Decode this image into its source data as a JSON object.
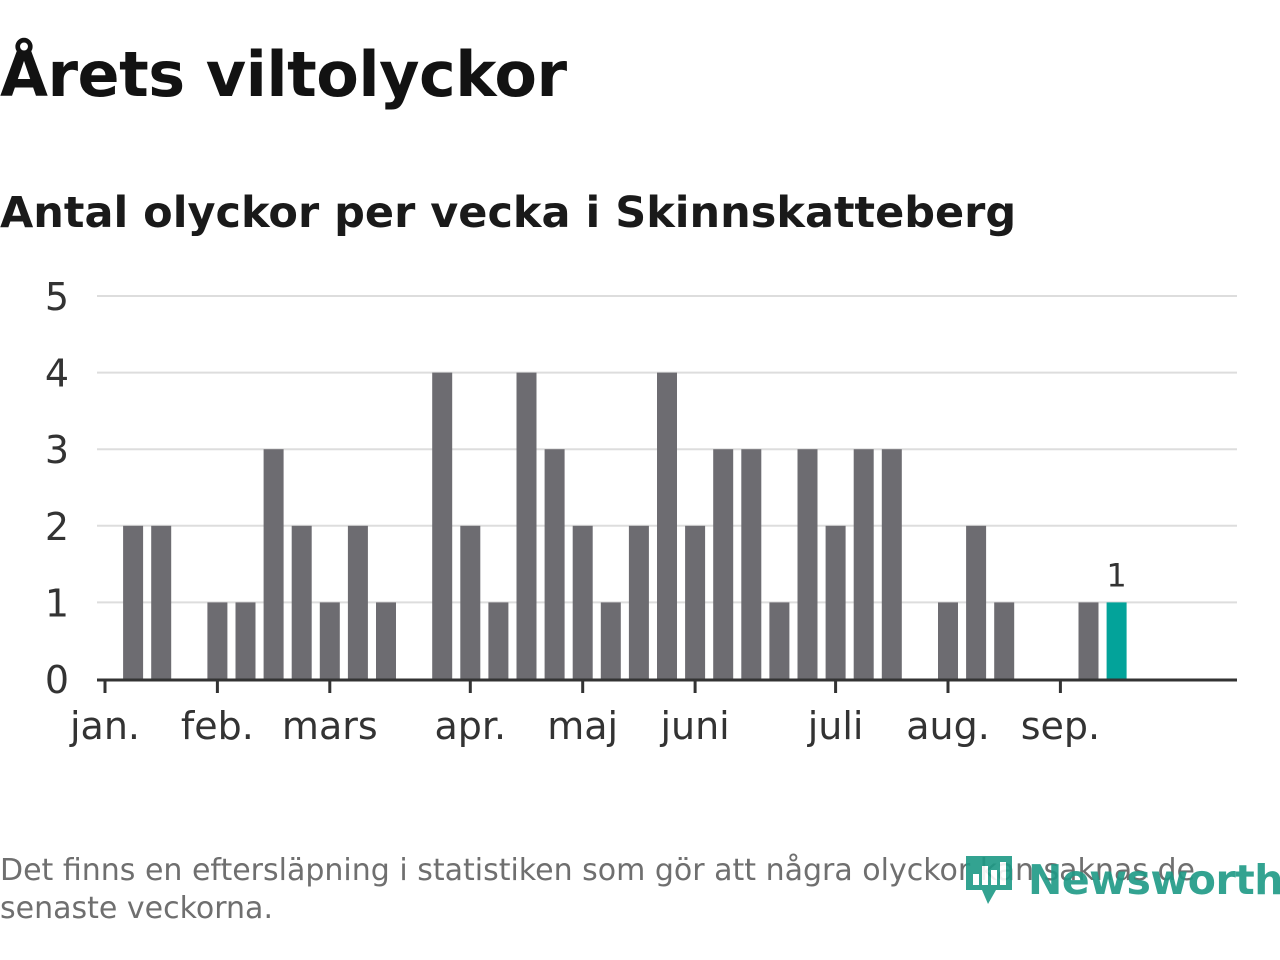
{
  "title": "Årets viltolyckor",
  "subtitle": "Antal olyckor per vecka i Skinnskatteberg",
  "footnote": "Det finns en eftersläpning i statistiken som gör att några olyckor kan saknas de senaste veckorna.",
  "logo": {
    "text": "Newsworthy",
    "icon": "bar-chart-bubble-icon",
    "color": "#1d9a86"
  },
  "colors": {
    "bar": "#6d6c71",
    "highlight": "#03a39a",
    "grid": "#dddddd",
    "axis": "#333333",
    "text": "#333333"
  },
  "chart_data": {
    "type": "bar",
    "xlabel": "",
    "ylabel": "",
    "ylim": [
      0,
      5
    ],
    "yticks": [
      0,
      1,
      2,
      3,
      4,
      5
    ],
    "grid": true,
    "legend": "none",
    "month_labels": [
      {
        "label": "jan.",
        "week": 1
      },
      {
        "label": "feb.",
        "week": 5
      },
      {
        "label": "mars",
        "week": 9
      },
      {
        "label": "apr.",
        "week": 14
      },
      {
        "label": "maj",
        "week": 18
      },
      {
        "label": "juni",
        "week": 22
      },
      {
        "label": "juli",
        "week": 27
      },
      {
        "label": "aug.",
        "week": 31
      },
      {
        "label": "sep.",
        "week": 35
      }
    ],
    "weeks": [
      1,
      2,
      3,
      4,
      5,
      6,
      7,
      8,
      9,
      10,
      11,
      12,
      13,
      14,
      15,
      16,
      17,
      18,
      19,
      20,
      21,
      22,
      23,
      24,
      25,
      26,
      27,
      28,
      29,
      30,
      31,
      32,
      33,
      34,
      35,
      36,
      37
    ],
    "values": [
      0,
      2,
      2,
      0,
      1,
      1,
      3,
      2,
      1,
      2,
      1,
      0,
      4,
      2,
      1,
      4,
      3,
      2,
      1,
      2,
      4,
      2,
      3,
      3,
      1,
      3,
      2,
      3,
      3,
      0,
      1,
      2,
      1,
      0,
      0,
      1,
      1
    ],
    "highlight_index": 36,
    "highlight_label": "1"
  }
}
